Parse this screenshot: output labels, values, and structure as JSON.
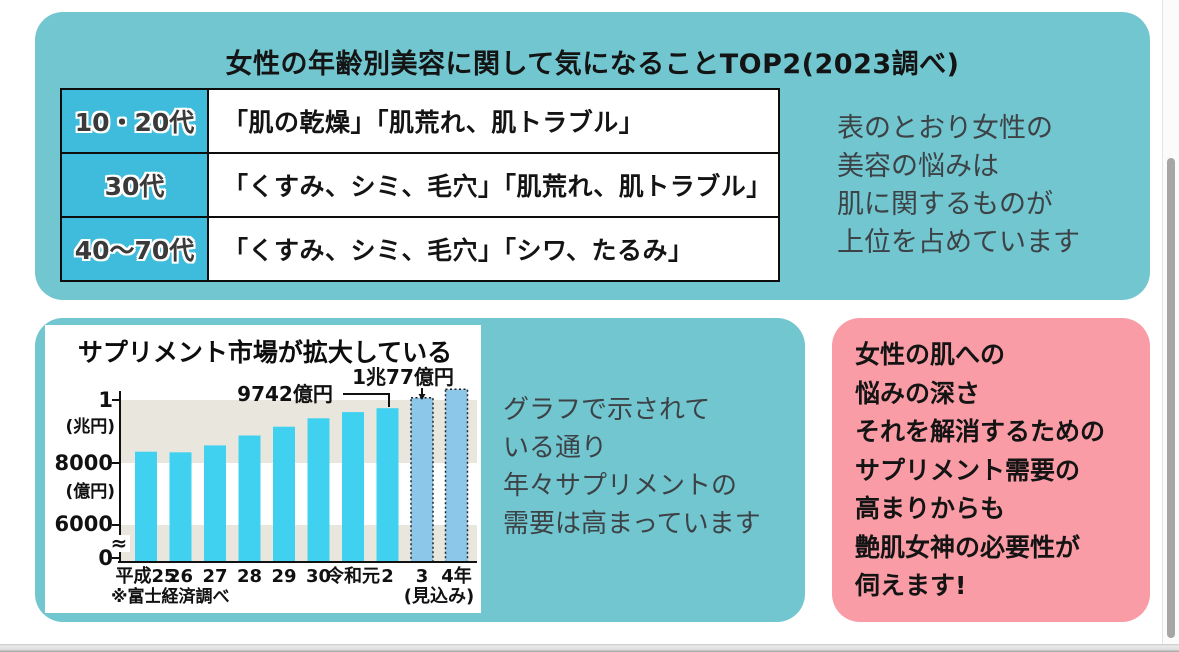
{
  "theme": {
    "panel_teal": "#71c6cf",
    "panel_pink": "#f99ca5",
    "table_header_cyan": "#3fbcdc"
  },
  "top_panel": {
    "title": "女性の年齢別美容に関して気になることTOP2(2023調べ)",
    "table": {
      "rows": [
        {
          "age": "10・20代",
          "concerns": "「肌の乾燥」「肌荒れ、肌トラブル」"
        },
        {
          "age": "30代",
          "concerns": "「くすみ、シミ、毛穴」「肌荒れ、肌トラブル」"
        },
        {
          "age": "40〜70代",
          "concerns": "「くすみ、シミ、毛穴」「シワ、たるみ」"
        }
      ]
    },
    "side_note": "表のとおり女性の\n美容の悩みは\n肌に関するものが\n上位を占めています"
  },
  "chart_panel": {
    "note": "グラフで示されて\nいる通り\n年々サプリメントの\n需要は高まっています"
  },
  "insight_panel": {
    "text": "女性の肌への\n悩みの深さ\nそれを解消するための\nサプリメント需要の\n高まりからも\n艶肌女神の必要性が\n伺えます!"
  },
  "chart_data": {
    "type": "bar",
    "title": "サプリメント市場が拡大している",
    "categories": [
      "平成25",
      "26",
      "27",
      "28",
      "29",
      "30",
      "令和元",
      "2",
      "3",
      "4年"
    ],
    "values": [
      8350,
      8330,
      8550,
      8870,
      9150,
      9420,
      9620,
      9742,
      10077,
      10350
    ],
    "unit": "億円",
    "forecast_from_index": 8,
    "forecast_note": "(見込み)",
    "source_note": "※富士経済調べ",
    "annotations": [
      {
        "text": "9742億円",
        "target_category": "2",
        "value": 9742
      },
      {
        "text": "1兆77億円",
        "target_category": "3",
        "value": 10077
      }
    ],
    "y_axis": {
      "tick_labels": [
        "1",
        "(兆円)",
        "8000",
        "(億円)",
        "6000",
        "0"
      ],
      "ticks_oku": [
        10000,
        8000,
        6000,
        0
      ],
      "axis_break": true,
      "break_symbol": "≈",
      "range_top_oku": 10500
    },
    "legend": "none",
    "colors": {
      "bar": "#3fd1ef",
      "forecast_bar": "#8cc6e9",
      "band": "#e9e6dd"
    }
  }
}
